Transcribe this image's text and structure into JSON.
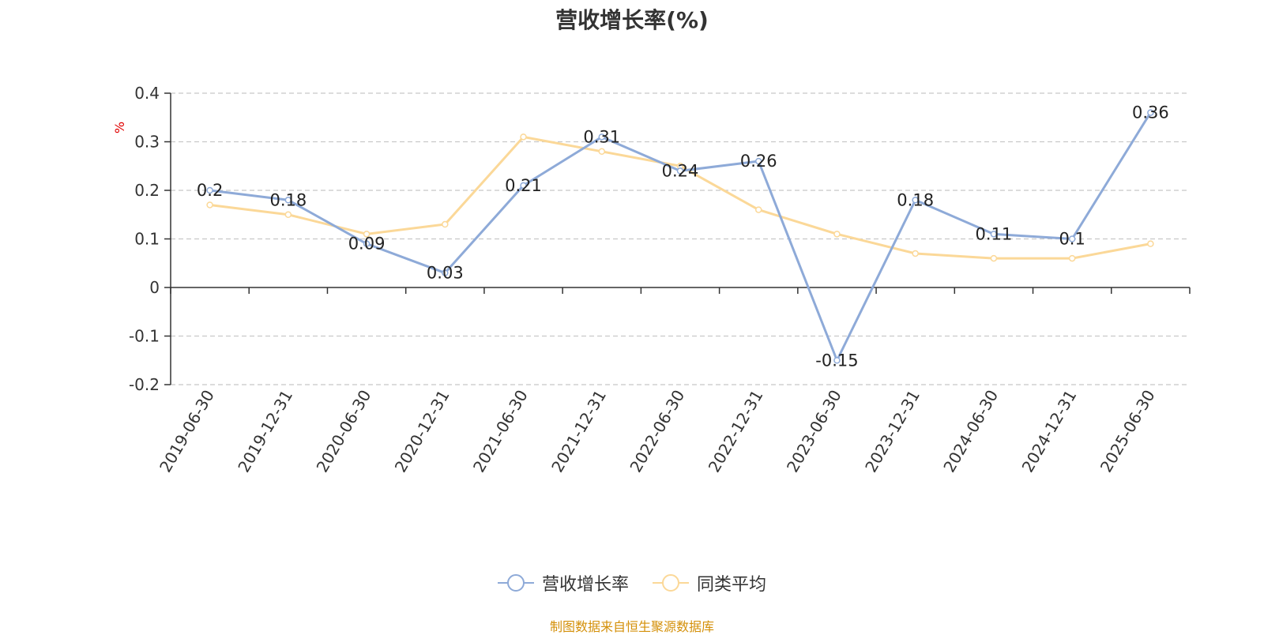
{
  "chart_data": {
    "type": "line",
    "title": "营收增长率(%)",
    "ylabel": "%",
    "xlabel": "",
    "categories": [
      "2019-06-30",
      "2019-12-31",
      "2020-06-30",
      "2020-12-31",
      "2021-06-30",
      "2021-12-31",
      "2022-06-30",
      "2022-12-31",
      "2023-06-30",
      "2023-12-31",
      "2024-06-30",
      "2024-12-31",
      "2025-06-30"
    ],
    "ylim": [
      -0.2,
      0.4
    ],
    "yticks": [
      "0.4",
      "0.3",
      "0.2",
      "0.1",
      "0",
      "-0.1",
      "-0.2"
    ],
    "ytick_values": [
      0.4,
      0.3,
      0.2,
      0.1,
      0,
      -0.1,
      -0.2
    ],
    "grid": true,
    "legend_position": "bottom-center",
    "series": [
      {
        "name": "营收增长率",
        "color": "#8eaad8",
        "values": [
          0.2,
          0.18,
          0.09,
          0.03,
          0.21,
          0.31,
          0.24,
          0.26,
          -0.15,
          0.18,
          0.11,
          0.1,
          0.36
        ],
        "labels": [
          "0.2",
          "0.18",
          "0.09",
          "0.03",
          "0.21",
          "0.31",
          "0.24",
          "0.26",
          "-0.15",
          "0.18",
          "0.11",
          "0.1",
          "0.36"
        ]
      },
      {
        "name": "同类平均",
        "color": "#fbd898",
        "values": [
          0.17,
          0.15,
          0.11,
          0.13,
          0.31,
          0.28,
          0.25,
          0.16,
          0.11,
          0.07,
          0.06,
          0.06,
          0.09
        ]
      }
    ]
  },
  "source_text": "制图数据来自恒生聚源数据库"
}
